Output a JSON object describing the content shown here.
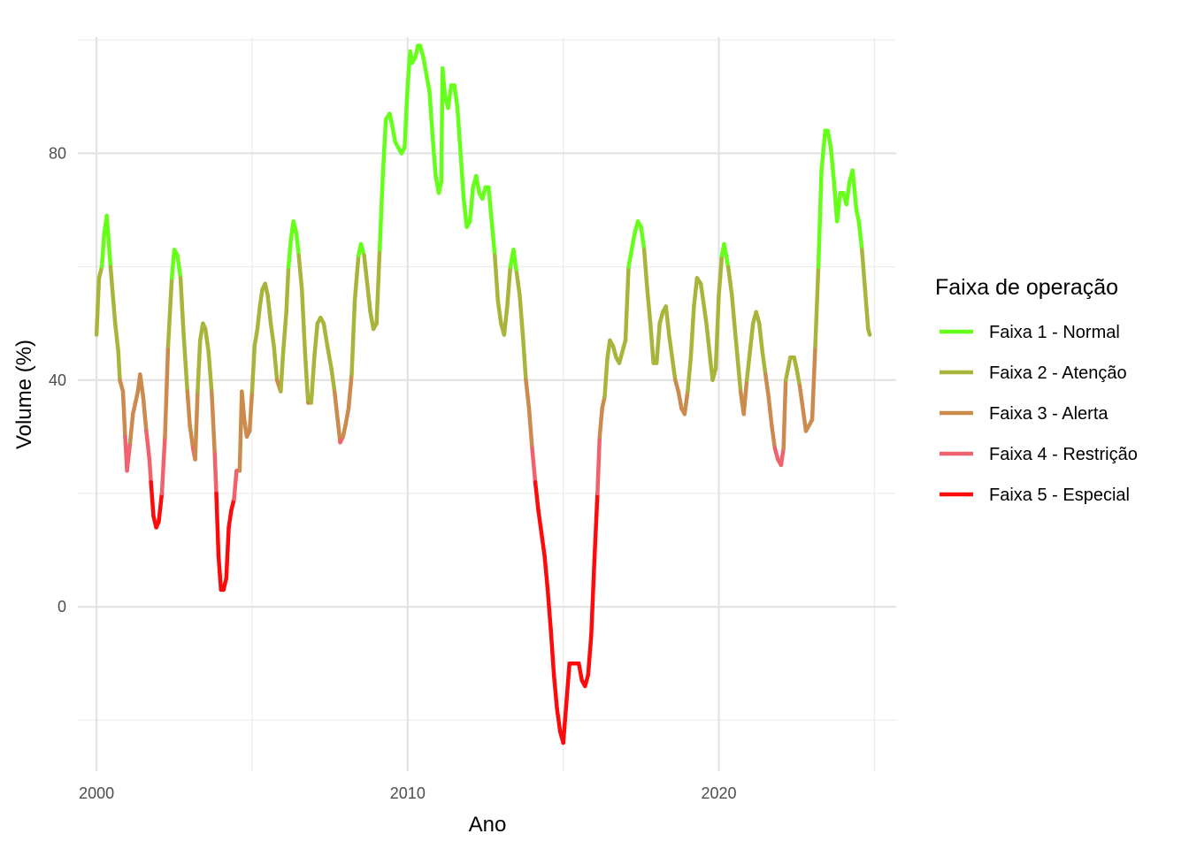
{
  "chart_data": {
    "type": "line",
    "xlabel": "Ano",
    "ylabel": "Volume (%)",
    "xlim": [
      1999.4,
      2025.7
    ],
    "ylim": [
      -29,
      100.5
    ],
    "x_ticks_major": [
      2000,
      2010,
      2020
    ],
    "x_ticks_minor": [
      2005,
      2015,
      2025
    ],
    "y_ticks_major": [
      0,
      40,
      80
    ],
    "y_ticks_minor": [
      -20,
      20,
      60,
      100
    ],
    "grid": true,
    "legend": {
      "title": "Faixa de operação",
      "position": "right",
      "entries": [
        {
          "label": "Faixa 1 - Normal",
          "color": "#66FF1A",
          "min": 60
        },
        {
          "label": "Faixa 2 - Atenção",
          "color": "#A9B43A",
          "min": 40
        },
        {
          "label": "Faixa 3 - Alerta",
          "color": "#CB8B4C",
          "min": 30
        },
        {
          "label": "Faixa 4 - Restrição",
          "color": "#F0636E",
          "min": 20
        },
        {
          "label": "Faixa 5 - Especial",
          "color": "#FF0A0A",
          "min": -1000
        }
      ]
    },
    "series": [
      {
        "points": [
          [
            2000.0,
            48
          ],
          [
            2000.08,
            58
          ],
          [
            2000.17,
            60
          ],
          [
            2000.25,
            66
          ],
          [
            2000.33,
            69
          ],
          [
            2000.45,
            60
          ],
          [
            2000.6,
            50
          ],
          [
            2000.7,
            45
          ],
          [
            2000.75,
            40
          ],
          [
            2000.85,
            38
          ],
          [
            2000.92,
            30
          ],
          [
            2000.98,
            24
          ],
          [
            2001.08,
            29
          ],
          [
            2001.17,
            34
          ],
          [
            2001.25,
            36
          ],
          [
            2001.33,
            38
          ],
          [
            2001.4,
            41
          ],
          [
            2001.5,
            37
          ],
          [
            2001.6,
            31
          ],
          [
            2001.7,
            26
          ],
          [
            2001.75,
            22
          ],
          [
            2001.83,
            16
          ],
          [
            2001.92,
            14
          ],
          [
            2002.0,
            15
          ],
          [
            2002.1,
            20
          ],
          [
            2002.2,
            30
          ],
          [
            2002.3,
            46
          ],
          [
            2002.42,
            58
          ],
          [
            2002.5,
            63
          ],
          [
            2002.6,
            62
          ],
          [
            2002.7,
            58
          ],
          [
            2002.8,
            48
          ],
          [
            2002.92,
            38
          ],
          [
            2003.0,
            32
          ],
          [
            2003.1,
            28
          ],
          [
            2003.17,
            26
          ],
          [
            2003.25,
            38
          ],
          [
            2003.33,
            47
          ],
          [
            2003.42,
            50
          ],
          [
            2003.5,
            49
          ],
          [
            2003.6,
            45
          ],
          [
            2003.7,
            38
          ],
          [
            2003.8,
            27
          ],
          [
            2003.85,
            20
          ],
          [
            2003.92,
            9
          ],
          [
            2004.0,
            3
          ],
          [
            2004.08,
            3
          ],
          [
            2004.17,
            5
          ],
          [
            2004.25,
            14
          ],
          [
            2004.33,
            17
          ],
          [
            2004.42,
            19
          ],
          [
            2004.5,
            24
          ],
          [
            2004.6,
            24
          ],
          [
            2004.67,
            38
          ],
          [
            2004.75,
            33
          ],
          [
            2004.83,
            30
          ],
          [
            2004.92,
            31
          ],
          [
            2005.0,
            38
          ],
          [
            2005.08,
            46
          ],
          [
            2005.17,
            49
          ],
          [
            2005.25,
            53
          ],
          [
            2005.33,
            56
          ],
          [
            2005.42,
            57
          ],
          [
            2005.5,
            55
          ],
          [
            2005.6,
            50
          ],
          [
            2005.7,
            46
          ],
          [
            2005.8,
            40
          ],
          [
            2005.92,
            38
          ],
          [
            2006.0,
            45
          ],
          [
            2006.1,
            52
          ],
          [
            2006.17,
            60
          ],
          [
            2006.25,
            65
          ],
          [
            2006.33,
            68
          ],
          [
            2006.42,
            66
          ],
          [
            2006.5,
            62
          ],
          [
            2006.6,
            56
          ],
          [
            2006.7,
            45
          ],
          [
            2006.8,
            36
          ],
          [
            2006.9,
            36
          ],
          [
            2007.0,
            44
          ],
          [
            2007.1,
            50
          ],
          [
            2007.2,
            51
          ],
          [
            2007.3,
            50
          ],
          [
            2007.42,
            46
          ],
          [
            2007.55,
            42
          ],
          [
            2007.65,
            38
          ],
          [
            2007.75,
            33
          ],
          [
            2007.83,
            29
          ],
          [
            2007.92,
            30
          ],
          [
            2008.0,
            32
          ],
          [
            2008.1,
            35
          ],
          [
            2008.2,
            41
          ],
          [
            2008.3,
            54
          ],
          [
            2008.42,
            62
          ],
          [
            2008.5,
            64
          ],
          [
            2008.6,
            62
          ],
          [
            2008.7,
            57
          ],
          [
            2008.8,
            52
          ],
          [
            2008.9,
            49
          ],
          [
            2009.0,
            50
          ],
          [
            2009.1,
            63
          ],
          [
            2009.2,
            76
          ],
          [
            2009.3,
            86
          ],
          [
            2009.42,
            87
          ],
          [
            2009.5,
            85
          ],
          [
            2009.6,
            82
          ],
          [
            2009.7,
            81
          ],
          [
            2009.8,
            80
          ],
          [
            2009.9,
            81
          ],
          [
            2010.0,
            92
          ],
          [
            2010.08,
            98
          ],
          [
            2010.15,
            96
          ],
          [
            2010.25,
            97
          ],
          [
            2010.33,
            99
          ],
          [
            2010.4,
            99
          ],
          [
            2010.5,
            97
          ],
          [
            2010.6,
            94
          ],
          [
            2010.7,
            91
          ],
          [
            2010.8,
            83
          ],
          [
            2010.9,
            76
          ],
          [
            2011.0,
            73
          ],
          [
            2011.08,
            75
          ],
          [
            2011.12,
            95
          ],
          [
            2011.2,
            90
          ],
          [
            2011.3,
            88
          ],
          [
            2011.4,
            92
          ],
          [
            2011.5,
            92
          ],
          [
            2011.6,
            88
          ],
          [
            2011.7,
            80
          ],
          [
            2011.8,
            72
          ],
          [
            2011.9,
            67
          ],
          [
            2012.0,
            68
          ],
          [
            2012.1,
            74
          ],
          [
            2012.2,
            76
          ],
          [
            2012.3,
            73
          ],
          [
            2012.4,
            72
          ],
          [
            2012.5,
            74
          ],
          [
            2012.6,
            74
          ],
          [
            2012.7,
            68
          ],
          [
            2012.8,
            62
          ],
          [
            2012.9,
            54
          ],
          [
            2013.0,
            50
          ],
          [
            2013.1,
            48
          ],
          [
            2013.2,
            53
          ],
          [
            2013.3,
            60
          ],
          [
            2013.4,
            63
          ],
          [
            2013.5,
            59
          ],
          [
            2013.6,
            55
          ],
          [
            2013.7,
            48
          ],
          [
            2013.8,
            40
          ],
          [
            2013.9,
            35
          ],
          [
            2014.0,
            28
          ],
          [
            2014.1,
            22
          ],
          [
            2014.2,
            17
          ],
          [
            2014.3,
            13
          ],
          [
            2014.4,
            9
          ],
          [
            2014.5,
            3
          ],
          [
            2014.6,
            -4
          ],
          [
            2014.7,
            -12
          ],
          [
            2014.8,
            -18
          ],
          [
            2014.9,
            -22
          ],
          [
            2015.0,
            -24
          ],
          [
            2015.1,
            -17
          ],
          [
            2015.2,
            -10
          ],
          [
            2015.3,
            -10
          ],
          [
            2015.42,
            -10
          ],
          [
            2015.5,
            -10
          ],
          [
            2015.6,
            -13
          ],
          [
            2015.7,
            -14
          ],
          [
            2015.8,
            -12
          ],
          [
            2015.9,
            -5
          ],
          [
            2016.0,
            8
          ],
          [
            2016.1,
            20
          ],
          [
            2016.17,
            30
          ],
          [
            2016.25,
            35
          ],
          [
            2016.33,
            37
          ],
          [
            2016.42,
            44
          ],
          [
            2016.5,
            47
          ],
          [
            2016.6,
            46
          ],
          [
            2016.7,
            44
          ],
          [
            2016.8,
            43
          ],
          [
            2016.9,
            45
          ],
          [
            2017.0,
            47
          ],
          [
            2017.1,
            60
          ],
          [
            2017.2,
            63
          ],
          [
            2017.3,
            66
          ],
          [
            2017.4,
            68
          ],
          [
            2017.5,
            67
          ],
          [
            2017.6,
            63
          ],
          [
            2017.7,
            56
          ],
          [
            2017.8,
            50
          ],
          [
            2017.9,
            43
          ],
          [
            2018.0,
            43
          ],
          [
            2018.1,
            50
          ],
          [
            2018.2,
            52
          ],
          [
            2018.3,
            53
          ],
          [
            2018.4,
            48
          ],
          [
            2018.5,
            44
          ],
          [
            2018.6,
            40
          ],
          [
            2018.7,
            38
          ],
          [
            2018.8,
            35
          ],
          [
            2018.9,
            34
          ],
          [
            2019.0,
            38
          ],
          [
            2019.1,
            44
          ],
          [
            2019.2,
            53
          ],
          [
            2019.3,
            58
          ],
          [
            2019.42,
            57
          ],
          [
            2019.5,
            54
          ],
          [
            2019.6,
            50
          ],
          [
            2019.7,
            45
          ],
          [
            2019.8,
            40
          ],
          [
            2019.9,
            42
          ],
          [
            2020.0,
            55
          ],
          [
            2020.1,
            62
          ],
          [
            2020.17,
            64
          ],
          [
            2020.3,
            60
          ],
          [
            2020.42,
            55
          ],
          [
            2020.5,
            50
          ],
          [
            2020.6,
            44
          ],
          [
            2020.7,
            38
          ],
          [
            2020.8,
            34
          ],
          [
            2020.9,
            40
          ],
          [
            2021.0,
            45
          ],
          [
            2021.1,
            50
          ],
          [
            2021.2,
            52
          ],
          [
            2021.3,
            50
          ],
          [
            2021.4,
            45
          ],
          [
            2021.5,
            41
          ],
          [
            2021.6,
            37
          ],
          [
            2021.7,
            32
          ],
          [
            2021.8,
            28
          ],
          [
            2021.9,
            26
          ],
          [
            2022.0,
            25
          ],
          [
            2022.08,
            28
          ],
          [
            2022.15,
            40
          ],
          [
            2022.3,
            44
          ],
          [
            2022.42,
            44
          ],
          [
            2022.5,
            42
          ],
          [
            2022.6,
            39
          ],
          [
            2022.7,
            35
          ],
          [
            2022.8,
            31
          ],
          [
            2022.9,
            32
          ],
          [
            2023.0,
            33
          ],
          [
            2023.1,
            46
          ],
          [
            2023.2,
            60
          ],
          [
            2023.3,
            77
          ],
          [
            2023.42,
            84
          ],
          [
            2023.5,
            84
          ],
          [
            2023.6,
            81
          ],
          [
            2023.7,
            75
          ],
          [
            2023.8,
            68
          ],
          [
            2023.9,
            73
          ],
          [
            2024.0,
            73
          ],
          [
            2024.1,
            71
          ],
          [
            2024.2,
            75
          ],
          [
            2024.3,
            77
          ],
          [
            2024.42,
            70
          ],
          [
            2024.5,
            68
          ],
          [
            2024.6,
            63
          ],
          [
            2024.7,
            56
          ],
          [
            2024.8,
            49
          ],
          [
            2024.85,
            48
          ]
        ]
      }
    ]
  }
}
